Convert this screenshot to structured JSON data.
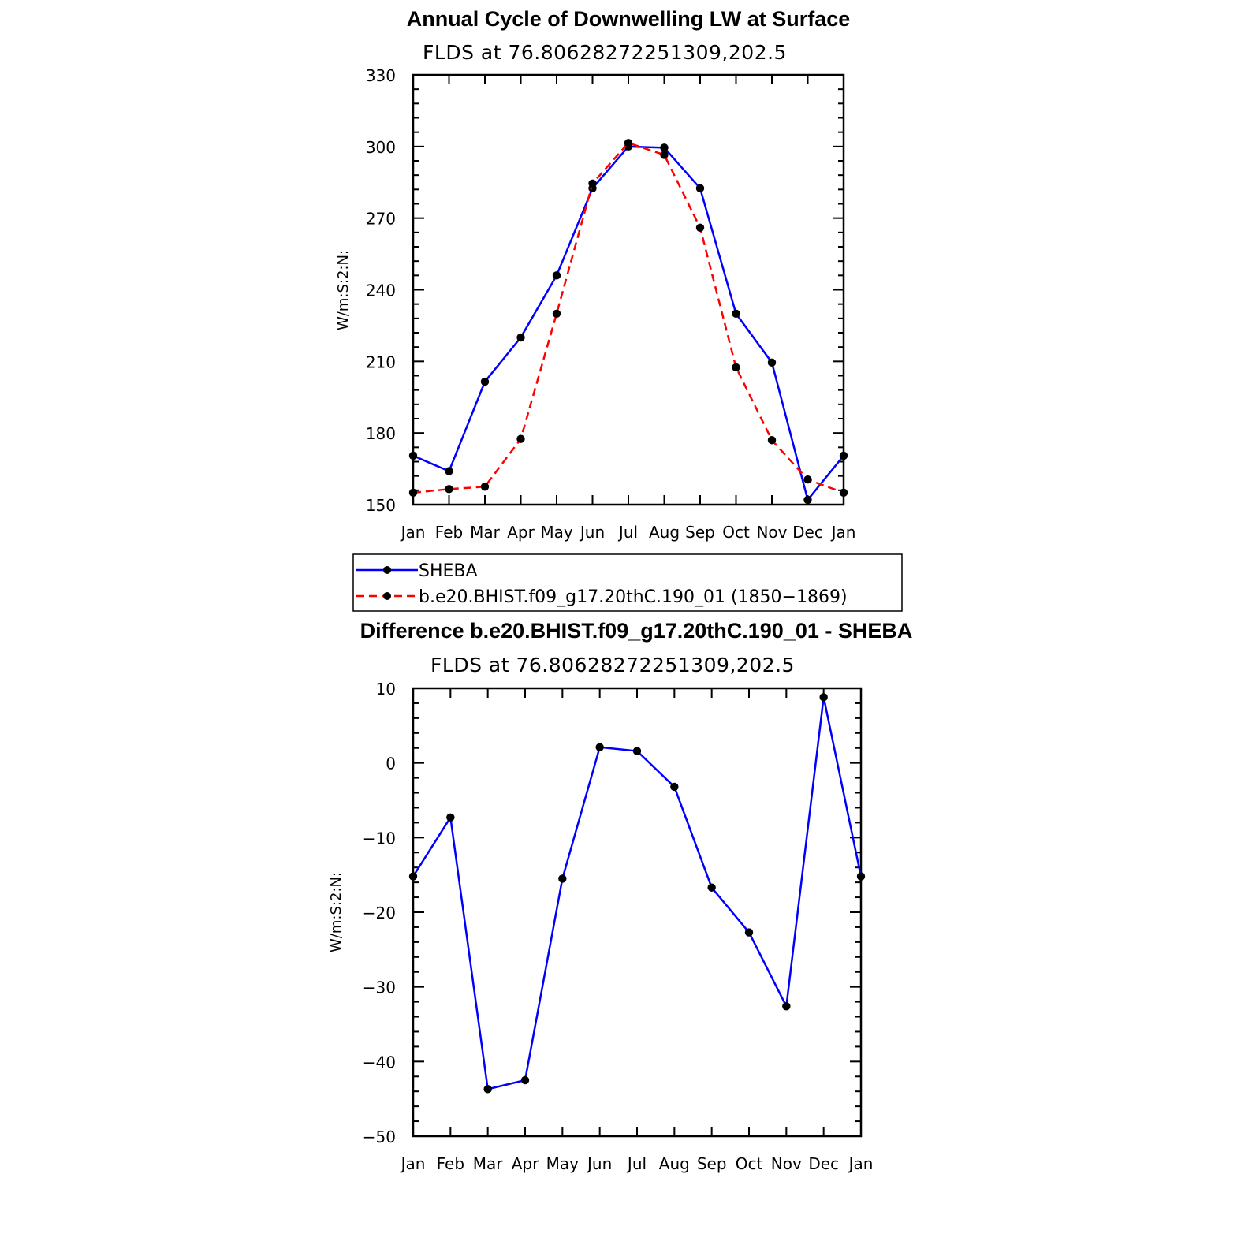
{
  "colors": {
    "sheba": "#0000ff",
    "model": "#ff0000",
    "marker": "#000000"
  },
  "chart_data": [
    {
      "type": "line",
      "title": "Annual Cycle of Downwelling LW at Surface",
      "subtitle": "FLDS at 76.80628272251309,202.5",
      "ylabel": "W/m:S:2:N:",
      "xlabel": "",
      "categories": [
        "Jan",
        "Feb",
        "Mar",
        "Apr",
        "May",
        "Jun",
        "Jul",
        "Aug",
        "Sep",
        "Oct",
        "Nov",
        "Dec",
        "Jan"
      ],
      "ylim": [
        150,
        330
      ],
      "yticks": [
        150,
        180,
        210,
        240,
        270,
        300,
        330
      ],
      "series": [
        {
          "name": "SHEBA",
          "style": "solid",
          "values": [
            170.5,
            164,
            201.5,
            220,
            246,
            282.5,
            300,
            299.5,
            282.5,
            230,
            209.5,
            152,
            170.5
          ]
        },
        {
          "name": "b.e20.BHIST.f09_g17.20thC.190_01 (1850−1869)",
          "style": "dashed",
          "values": [
            155,
            156.5,
            157.5,
            177.5,
            230,
            284.5,
            301.5,
            296.5,
            266,
            207.5,
            177,
            160.5,
            155
          ]
        }
      ],
      "legend": "below"
    },
    {
      "type": "line",
      "title": "Difference b.e20.BHIST.f09_g17.20thC.190_01 - SHEBA",
      "subtitle": "FLDS at 76.80628272251309,202.5",
      "ylabel": "W/m:S:2:N:",
      "xlabel": "",
      "categories": [
        "Jan",
        "Feb",
        "Mar",
        "Apr",
        "May",
        "Jun",
        "Jul",
        "Aug",
        "Sep",
        "Oct",
        "Nov",
        "Dec",
        "Jan"
      ],
      "ylim": [
        -50,
        10
      ],
      "yticks": [
        -50,
        -40,
        -30,
        -20,
        -10,
        0,
        10
      ],
      "series": [
        {
          "style": "solid",
          "values": [
            -15.2,
            -7.3,
            -43.7,
            -42.5,
            -15.5,
            2.1,
            1.6,
            -3.2,
            -16.7,
            -22.7,
            -32.6,
            8.8,
            -15.2
          ]
        }
      ]
    }
  ]
}
